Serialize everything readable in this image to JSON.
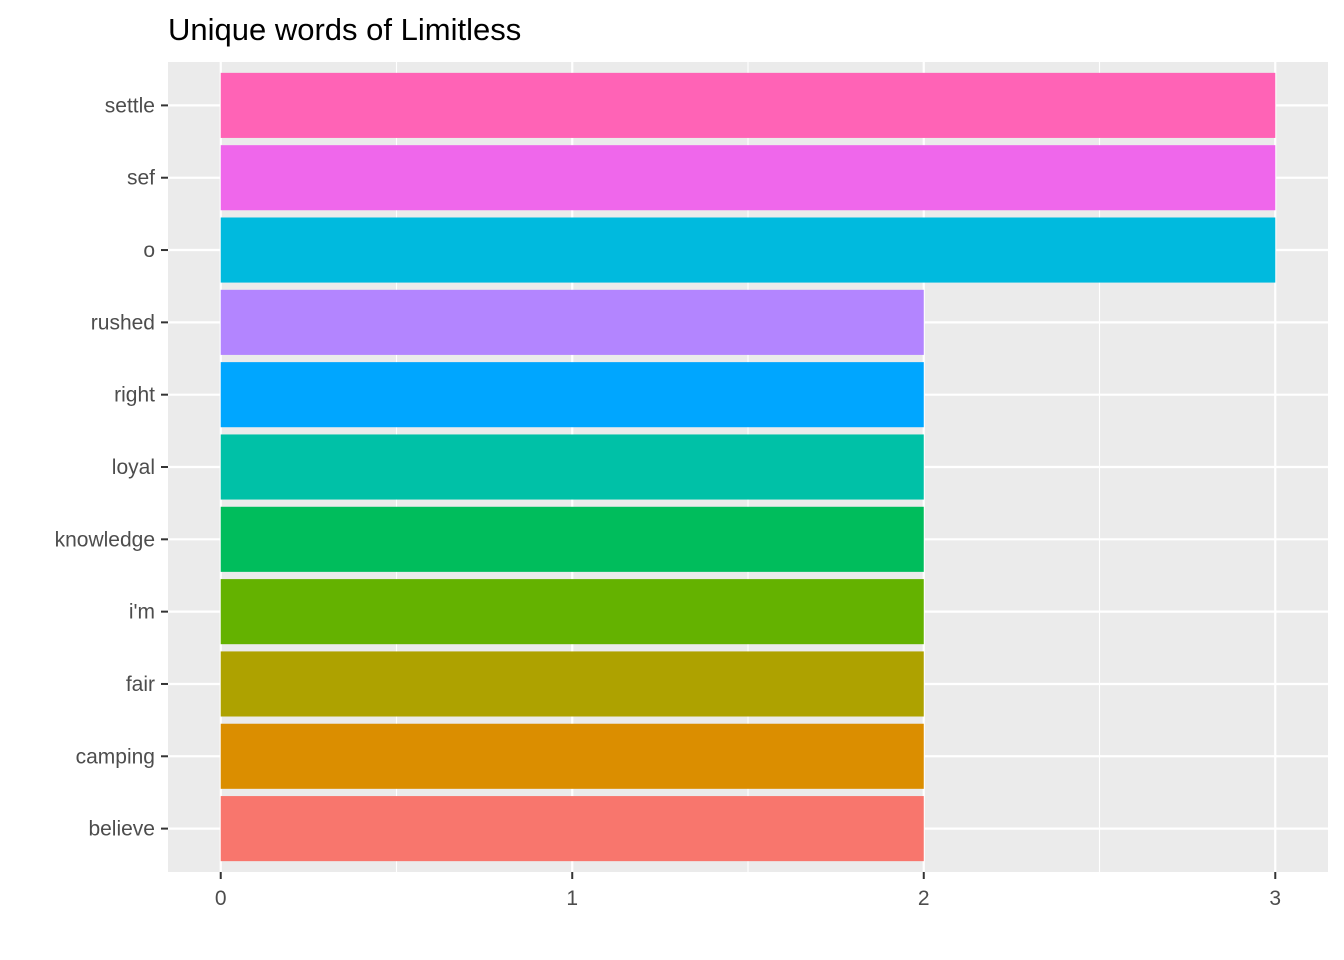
{
  "chart_data": {
    "type": "bar",
    "orientation": "horizontal",
    "title": "Unique words of Limitless",
    "xlabel": "",
    "ylabel": "",
    "categories": [
      "believe",
      "camping",
      "fair",
      "i'm",
      "knowledge",
      "loyal",
      "right",
      "rushed",
      "o",
      "sef",
      "settle"
    ],
    "values": [
      2,
      2,
      2,
      2,
      2,
      2,
      2,
      2,
      3,
      3,
      3
    ],
    "colors": [
      "#F8766D",
      "#DB8E00",
      "#AEA200",
      "#64B200",
      "#00BD5C",
      "#00C1A7",
      "#00A6FF",
      "#B385FF",
      "#00BADE",
      "#EF67EB",
      "#FF63B6"
    ],
    "xlim": [
      -0.15,
      3.15
    ],
    "x_ticks": [
      0,
      1,
      2,
      3
    ],
    "grid": true,
    "legend": "none",
    "panel_background": "#EBEBEB",
    "grid_color": "#FFFFFF"
  }
}
